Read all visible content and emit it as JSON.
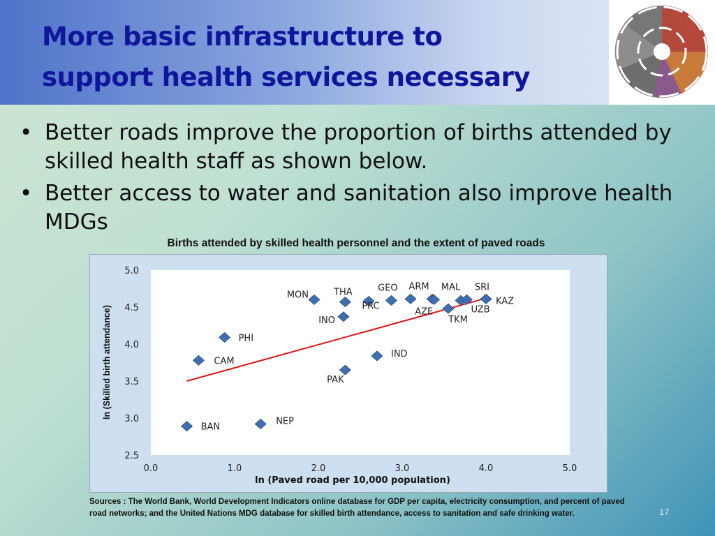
{
  "slide": {
    "title_line1": "More basic infrastructure to",
    "title_line2": "support health services necessary",
    "bullets": [
      "Better roads improve the proportion of births attended by skilled health staff as shown below.",
      "Better access to water and sanitation also improve health MDGs"
    ],
    "bullet_glyph": "•",
    "sources": "Sources : The World Bank, World Development Indicators online database for GDP per capita, electricity consumption, and percent of paved road networks;  and the United Nations MDG database for skilled birth attendance, access to sanitation and safe drinking water.",
    "page_number": "17"
  },
  "colors": {
    "title": "#0f169c",
    "marker": "#3f6fae",
    "trendline": "#e01414",
    "plot_bg": "#ffffff",
    "chart_bg": "#cddff1"
  },
  "chart_data": {
    "type": "scatter",
    "title": "Births attended by skilled health personnel and the extent of paved roads",
    "xlabel": "ln (Paved road per 10,000 population)",
    "ylabel": "ln (Skilled birth attendance)",
    "xlim": [
      0.0,
      5.0
    ],
    "ylim": [
      2.5,
      5.0
    ],
    "xticks": [
      "0.0",
      "1.0",
      "2.0",
      "3.0",
      "4.0",
      "5.0"
    ],
    "yticks": [
      "2.5",
      "3.0",
      "3.5",
      "4.0",
      "4.5",
      "5.0"
    ],
    "grid": false,
    "points": [
      {
        "label": "BAN",
        "x": 0.43,
        "y": 2.89
      },
      {
        "label": "CAM",
        "x": 0.57,
        "y": 3.78
      },
      {
        "label": "PHI",
        "x": 0.88,
        "y": 4.09
      },
      {
        "label": "NEP",
        "x": 1.31,
        "y": 2.92
      },
      {
        "label": "MON",
        "x": 1.95,
        "y": 4.6
      },
      {
        "label": "THA",
        "x": 2.32,
        "y": 4.57
      },
      {
        "label": "INO",
        "x": 2.3,
        "y": 4.37
      },
      {
        "label": "PAK",
        "x": 2.32,
        "y": 3.65
      },
      {
        "label": "PRC",
        "x": 2.6,
        "y": 4.58
      },
      {
        "label": "IND",
        "x": 2.7,
        "y": 3.84
      },
      {
        "label": "GEO",
        "x": 2.87,
        "y": 4.59
      },
      {
        "label": "ARM",
        "x": 3.1,
        "y": 4.61
      },
      {
        "label": "AZE",
        "x": 3.36,
        "y": 4.61
      },
      {
        "label": "MAL",
        "x": 3.38,
        "y": 4.6
      },
      {
        "label": "TKM",
        "x": 3.55,
        "y": 4.48
      },
      {
        "label": "UZB",
        "x": 3.7,
        "y": 4.59
      },
      {
        "label": "SRI",
        "x": 3.77,
        "y": 4.6
      },
      {
        "label": "KAZ",
        "x": 4.0,
        "y": 4.61
      }
    ],
    "trendline": {
      "x": [
        0.43,
        3.97
      ],
      "y": [
        3.5,
        4.61
      ]
    }
  }
}
